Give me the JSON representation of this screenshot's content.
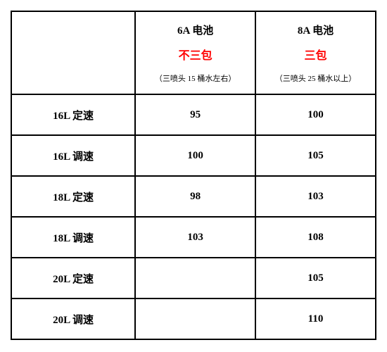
{
  "table": {
    "columns": {
      "col1": {
        "header_top": "",
        "header_mid": "",
        "header_note": ""
      },
      "col2": {
        "header_top": "6A 电池",
        "header_mid": "不三包",
        "header_mid_color": "#ff0000",
        "header_note": "（三喷头 15 桶水左右）"
      },
      "col3": {
        "header_top": "8A 电池",
        "header_mid": "三包",
        "header_mid_color": "#ff0000",
        "header_note": "（三喷头 25 桶水以上）"
      }
    },
    "rows": [
      {
        "label": "16L 定速",
        "col2": "95",
        "col3": "100"
      },
      {
        "label": "16L 调速",
        "col2": "100",
        "col3": "105"
      },
      {
        "label": "18L 定速",
        "col2": "98",
        "col3": "103"
      },
      {
        "label": "18L 调速",
        "col2": "103",
        "col3": "108"
      },
      {
        "label": "20L 定速",
        "col2": "",
        "col3": "105"
      },
      {
        "label": "20L 调速",
        "col2": "",
        "col3": "110"
      }
    ],
    "styling": {
      "border_color": "#000000",
      "border_width": 2,
      "background": "#ffffff",
      "text_color": "#000000",
      "highlight_color": "#ff0000",
      "header_fontsize_line1": 15,
      "header_fontsize_line2": 16,
      "header_fontsize_line3": 11,
      "body_fontsize": 15,
      "font_family": "SimSun"
    }
  }
}
